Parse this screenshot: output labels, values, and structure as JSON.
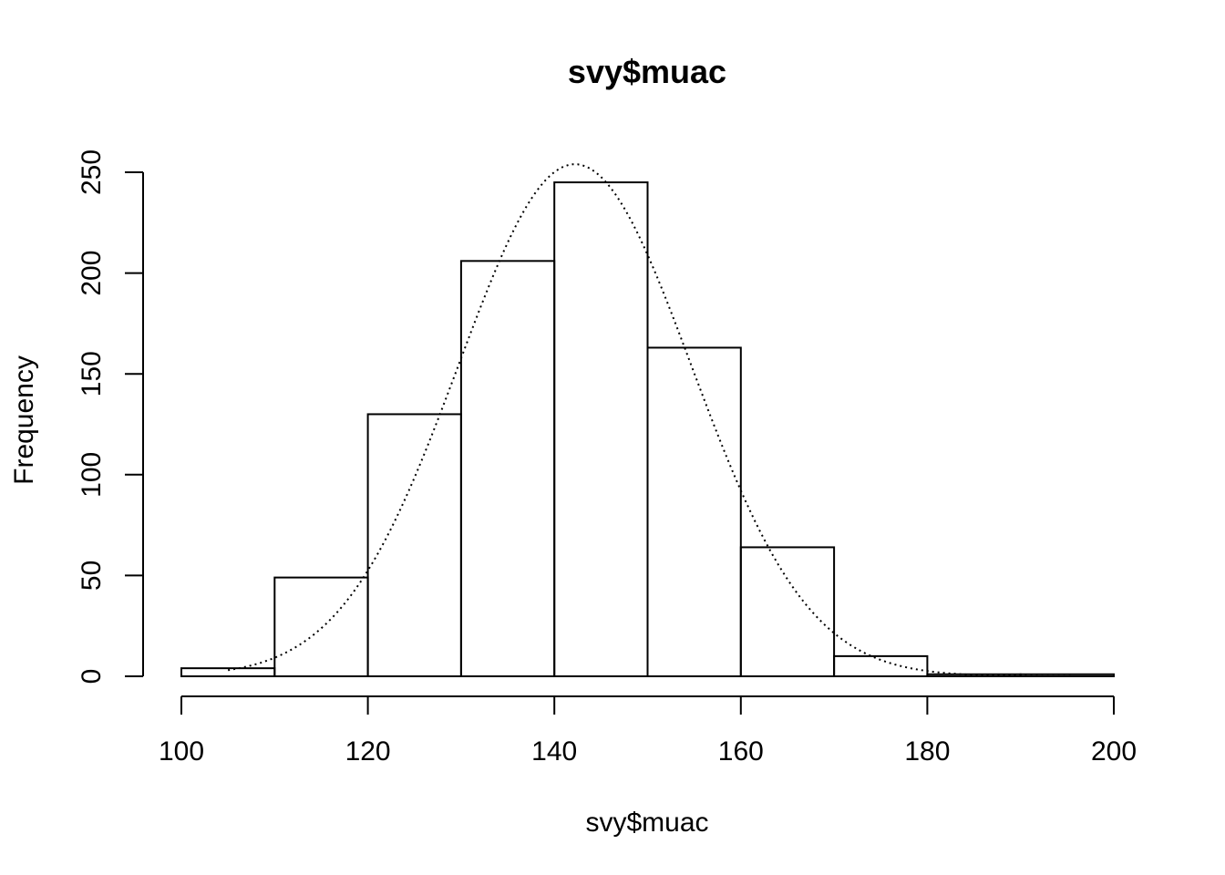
{
  "chart_data": {
    "type": "bar",
    "title": "svy$muac",
    "xlabel": "svy$muac",
    "ylabel": "Frequency",
    "xlim": [
      100,
      200
    ],
    "ylim": [
      0,
      250
    ],
    "x_ticks": [
      100,
      120,
      140,
      160,
      180,
      200
    ],
    "x_tick_labels": [
      "100",
      "120",
      "140",
      "160",
      "180",
      "200"
    ],
    "y_ticks": [
      0,
      50,
      100,
      150,
      200,
      250
    ],
    "y_tick_labels": [
      "0",
      "50",
      "100",
      "150",
      "200",
      "250"
    ],
    "bins": [
      {
        "start": 100,
        "end": 110,
        "count": 4
      },
      {
        "start": 110,
        "end": 120,
        "count": 49
      },
      {
        "start": 120,
        "end": 130,
        "count": 130
      },
      {
        "start": 130,
        "end": 140,
        "count": 206
      },
      {
        "start": 140,
        "end": 150,
        "count": 245
      },
      {
        "start": 150,
        "end": 160,
        "count": 163
      },
      {
        "start": 160,
        "end": 170,
        "count": 64
      },
      {
        "start": 170,
        "end": 180,
        "count": 10
      },
      {
        "start": 180,
        "end": 190,
        "count": 1
      },
      {
        "start": 190,
        "end": 200,
        "count": 1
      }
    ],
    "density_curve": {
      "style": "dotted",
      "distribution": "normal",
      "mean": 142.2,
      "sd": 12.5,
      "peak_frequency": 254,
      "x_range": [
        105,
        200
      ]
    },
    "grid": false,
    "legend": "none"
  }
}
